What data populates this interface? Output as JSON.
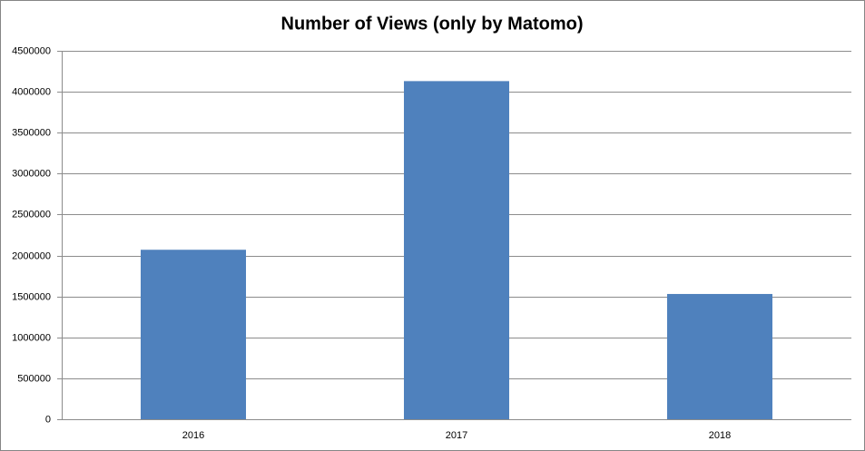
{
  "chart_data": {
    "type": "bar",
    "title": "Number of Views (only by Matomo)",
    "categories": [
      "2016",
      "2017",
      "2018"
    ],
    "values": [
      2070000,
      4130000,
      1530000
    ],
    "color": "#4f81bd",
    "ylim": [
      0,
      4500000
    ],
    "yticks": [
      0,
      500000,
      1000000,
      1500000,
      2000000,
      2500000,
      3000000,
      3500000,
      4000000,
      4500000
    ],
    "grid": true
  }
}
